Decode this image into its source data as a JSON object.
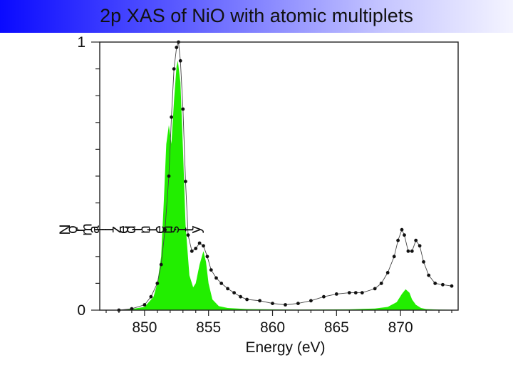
{
  "slide": {
    "title": "2p XAS of NiО with atomic multiplets",
    "title_color": "#111111",
    "band_colors": [
      "#0a0aff",
      "#f4f4ff"
    ]
  },
  "chart_data": {
    "type": "line",
    "title": "2p XAS of NiO with atomic multiplets",
    "xlabel": "Energy (eV)",
    "ylabel": "Normalized Intensity",
    "xlim": [
      846.5,
      874.5
    ],
    "ylim": [
      0,
      1
    ],
    "x_ticks": [
      850,
      855,
      860,
      865,
      870
    ],
    "y_tick_labels": [
      "0",
      "1"
    ],
    "grid": false,
    "legend": "none",
    "series": [
      {
        "kind": "experiment",
        "style": "black dots with thin connecting line",
        "color": "#000000",
        "x": [
          848.0,
          849.0,
          850.0,
          850.5,
          851.0,
          851.3,
          851.6,
          851.9,
          852.1,
          852.3,
          852.5,
          852.65,
          852.8,
          853.0,
          853.2,
          853.4,
          853.7,
          854.0,
          854.3,
          854.6,
          854.9,
          855.2,
          855.6,
          856.0,
          856.5,
          857.0,
          857.5,
          858.0,
          859.0,
          860.0,
          861.0,
          862.0,
          863.0,
          864.0,
          865.0,
          866.0,
          866.5,
          867.0,
          868.0,
          868.5,
          869.0,
          869.5,
          869.8,
          870.1,
          870.3,
          870.6,
          870.9,
          871.2,
          871.5,
          871.8,
          872.2,
          872.7,
          873.3,
          874.0
        ],
        "y": [
          0.0,
          0.005,
          0.02,
          0.05,
          0.1,
          0.17,
          0.3,
          0.5,
          0.72,
          0.9,
          0.98,
          1.0,
          0.93,
          0.75,
          0.48,
          0.28,
          0.22,
          0.23,
          0.25,
          0.24,
          0.2,
          0.15,
          0.12,
          0.1,
          0.08,
          0.065,
          0.05,
          0.04,
          0.035,
          0.025,
          0.02,
          0.025,
          0.035,
          0.05,
          0.06,
          0.065,
          0.065,
          0.065,
          0.08,
          0.1,
          0.14,
          0.2,
          0.26,
          0.3,
          0.28,
          0.22,
          0.22,
          0.26,
          0.24,
          0.18,
          0.13,
          0.1,
          0.095,
          0.09
        ]
      },
      {
        "kind": "atomic multiplet calculation",
        "style": "filled area",
        "color": "#22ee00",
        "x": [
          847.5,
          849.0,
          850.0,
          850.7,
          851.0,
          851.3,
          851.5,
          851.7,
          851.9,
          852.1,
          852.3,
          852.5,
          852.6,
          852.8,
          853.0,
          853.2,
          853.5,
          853.8,
          854.0,
          854.3,
          854.6,
          854.8,
          855.0,
          855.3,
          855.8,
          856.5,
          858.0,
          862.0,
          866.0,
          868.0,
          869.0,
          869.7,
          870.1,
          870.4,
          870.7,
          870.9,
          871.2,
          871.6,
          872.0,
          873.0,
          874.5
        ],
        "y": [
          0.0,
          0.004,
          0.012,
          0.05,
          0.1,
          0.2,
          0.4,
          0.62,
          0.69,
          0.62,
          0.78,
          0.91,
          0.93,
          0.85,
          0.6,
          0.32,
          0.13,
          0.085,
          0.1,
          0.17,
          0.22,
          0.18,
          0.1,
          0.04,
          0.015,
          0.008,
          0.004,
          0.002,
          0.003,
          0.006,
          0.012,
          0.03,
          0.06,
          0.078,
          0.065,
          0.04,
          0.02,
          0.008,
          0.004,
          0.002,
          0.001
        ]
      }
    ]
  }
}
